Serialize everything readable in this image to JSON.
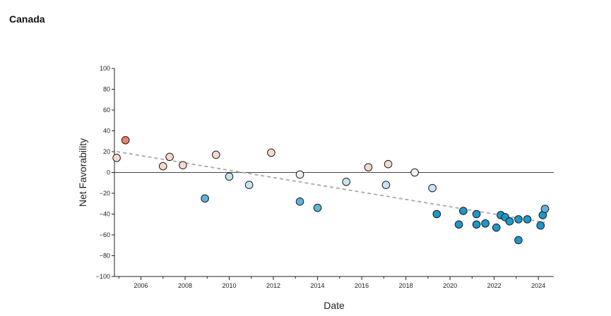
{
  "page": {
    "title": "Canada"
  },
  "chart_data": {
    "type": "scatter",
    "title": "Canada",
    "xlabel": "Date",
    "ylabel": "Net Favorability",
    "xlim": [
      2004.8,
      2024.7
    ],
    "ylim": [
      -100,
      100
    ],
    "x_ticks": [
      "2006",
      "2008",
      "2010",
      "2012",
      "2014",
      "2016",
      "2018",
      "2020",
      "2022",
      "2024"
    ],
    "y_ticks": [
      "100",
      "80",
      "60",
      "40",
      "20",
      "0",
      "−20",
      "−40",
      "−60",
      "−80",
      "−100"
    ],
    "grid": false,
    "legend": "none",
    "reference_line_y": 0,
    "trend_line": {
      "style": "dashed",
      "color": "#a8a8a8",
      "from": [
        2004.9,
        20
      ],
      "to": [
        2024.3,
        -48
      ]
    },
    "color_scale": {
      "positive_strong": "#e8826c",
      "positive_light": "#f8d9ce",
      "neutral": "#f0f0f0",
      "negative_light": "#c6e4f5",
      "negative_mid": "#5fb3dc",
      "negative_strong": "#1d98c8"
    },
    "points": [
      {
        "x": 2004.9,
        "y": 14
      },
      {
        "x": 2005.3,
        "y": 31
      },
      {
        "x": 2007.0,
        "y": 6
      },
      {
        "x": 2007.3,
        "y": 15
      },
      {
        "x": 2007.9,
        "y": 7
      },
      {
        "x": 2008.9,
        "y": -25
      },
      {
        "x": 2009.4,
        "y": 17
      },
      {
        "x": 2010.0,
        "y": -4
      },
      {
        "x": 2010.9,
        "y": -12
      },
      {
        "x": 2011.9,
        "y": 19
      },
      {
        "x": 2013.2,
        "y": -2
      },
      {
        "x": 2013.2,
        "y": -28
      },
      {
        "x": 2014.0,
        "y": -34
      },
      {
        "x": 2015.3,
        "y": -9
      },
      {
        "x": 2016.3,
        "y": 5
      },
      {
        "x": 2017.1,
        "y": -12
      },
      {
        "x": 2017.2,
        "y": 8
      },
      {
        "x": 2018.4,
        "y": 0
      },
      {
        "x": 2019.2,
        "y": -15
      },
      {
        "x": 2019.4,
        "y": -40
      },
      {
        "x": 2020.4,
        "y": -50
      },
      {
        "x": 2020.6,
        "y": -37
      },
      {
        "x": 2021.2,
        "y": -40
      },
      {
        "x": 2021.2,
        "y": -50
      },
      {
        "x": 2021.6,
        "y": -49
      },
      {
        "x": 2022.1,
        "y": -53
      },
      {
        "x": 2022.3,
        "y": -41
      },
      {
        "x": 2022.5,
        "y": -43
      },
      {
        "x": 2022.7,
        "y": -47
      },
      {
        "x": 2023.1,
        "y": -45
      },
      {
        "x": 2023.1,
        "y": -65
      },
      {
        "x": 2023.5,
        "y": -45
      },
      {
        "x": 2024.1,
        "y": -51
      },
      {
        "x": 2024.2,
        "y": -41
      },
      {
        "x": 2024.3,
        "y": -35
      }
    ]
  }
}
